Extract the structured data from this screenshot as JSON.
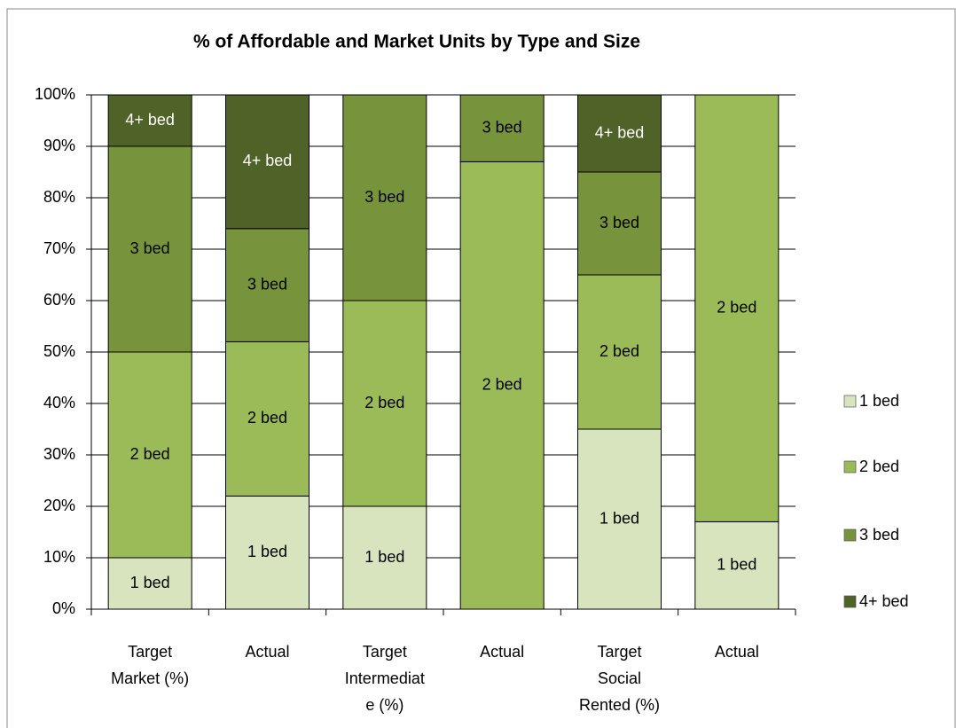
{
  "chart_data": {
    "type": "stacked_bar",
    "title": "% of Affordable and Market Units by Type and Size",
    "categories": [
      "Target Market (%)",
      "Actual",
      "Target Intermediate (%)",
      "Actual",
      "Target Social Rented (%)",
      "Actual"
    ],
    "series": [
      {
        "name": "1 bed",
        "color": "#d7e4bd",
        "label_color": "#000000",
        "values": [
          10,
          22,
          20,
          0,
          35,
          17
        ]
      },
      {
        "name": "2 bed",
        "color": "#9bbb59",
        "label_color": "#000000",
        "values": [
          40,
          30,
          40,
          87,
          30,
          83
        ]
      },
      {
        "name": "3 bed",
        "color": "#77933c",
        "label_color": "#000000",
        "values": [
          40,
          22,
          40,
          13,
          20,
          0
        ]
      },
      {
        "name": "4+ bed",
        "color": "#4f6228",
        "label_color": "#ffffff",
        "values": [
          10,
          26,
          0,
          0,
          15,
          0
        ]
      }
    ],
    "ylim": [
      0,
      100
    ],
    "yticks": [
      {
        "value": 0,
        "label": "0%"
      },
      {
        "value": 10,
        "label": "10%"
      },
      {
        "value": 20,
        "label": "20%"
      },
      {
        "value": 30,
        "label": "30%"
      },
      {
        "value": 40,
        "label": "40%"
      },
      {
        "value": 50,
        "label": "50%"
      },
      {
        "value": 60,
        "label": "60%"
      },
      {
        "value": 70,
        "label": "70%"
      },
      {
        "value": 80,
        "label": "80%"
      },
      {
        "value": 90,
        "label": "90%"
      },
      {
        "value": 100,
        "label": "100%"
      }
    ],
    "grid": true,
    "legend": "right"
  }
}
